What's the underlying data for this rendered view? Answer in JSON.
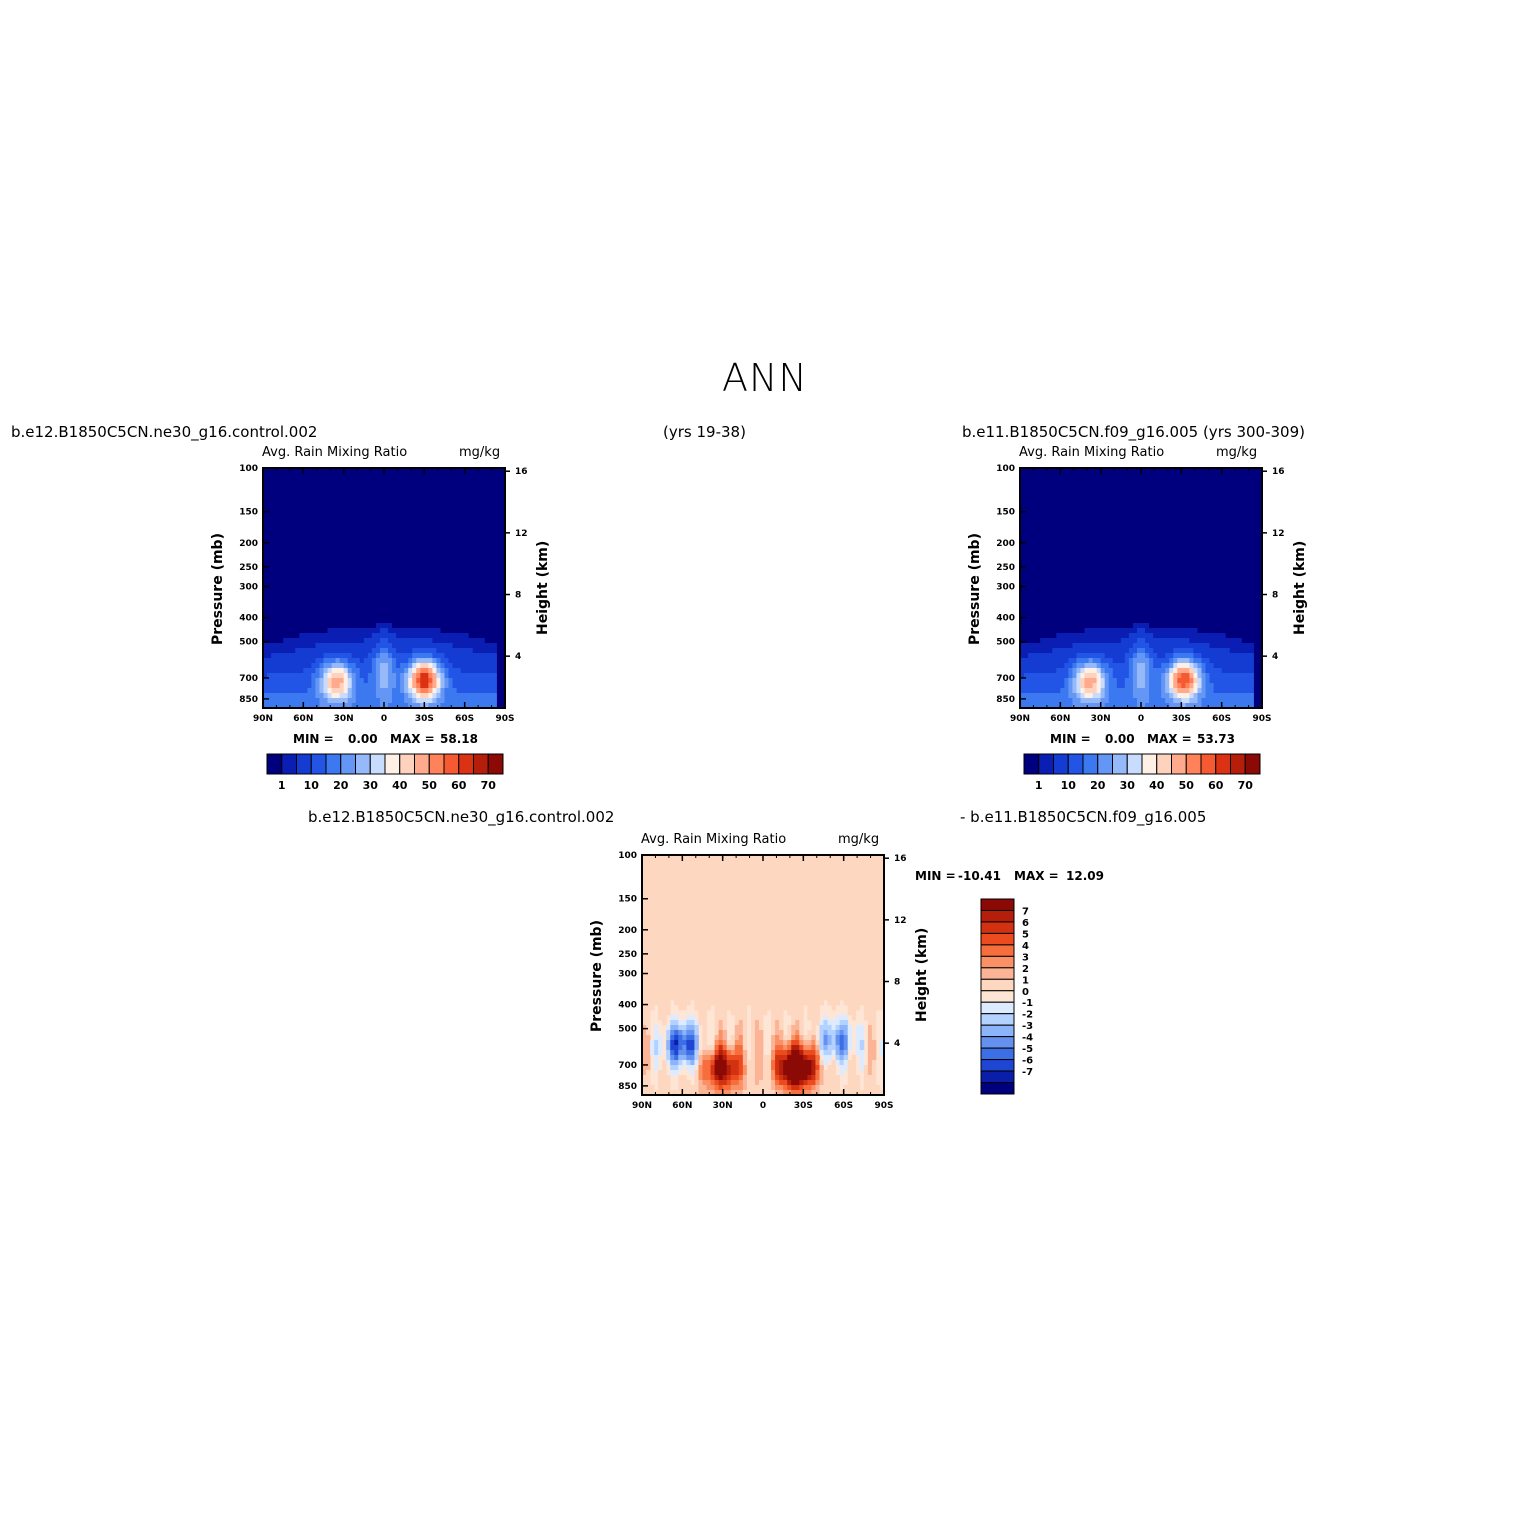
{
  "page": {
    "season": "ANN",
    "header_left": "b.e12.B1850C5CN.ne30_g16.control.002",
    "header_mid": "(yrs 19-38)",
    "header_right": "b.e11.B1850C5CN.f09_g16.005 (yrs 300-309)",
    "diff_label_left": "b.e12.B1850C5CN.ne30_g16.control.002",
    "diff_label_right": "- b.e11.B1850C5CN.f09_g16.005"
  },
  "colors": {
    "deep_blue": "#000a8c",
    "diff_background": "#fee6d6"
  },
  "chart_data": [
    {
      "type": "heatmap",
      "id": "panel-a",
      "variable": "Avg. Rain Mixing Ratio",
      "units": "mg/kg",
      "ylabel": "Pressure (mb)",
      "ylabel_right": "Height (km)",
      "x_ticks": [
        "90N",
        "60N",
        "30N",
        "0",
        "30S",
        "60S",
        "90S"
      ],
      "y_ticks": [
        "100",
        "150",
        "200",
        "250",
        "300",
        "400",
        "500",
        "700",
        "850"
      ],
      "y_ticks_right": [
        "16",
        "12",
        "8",
        "4"
      ],
      "min_label": "MIN =",
      "min": "0.00",
      "max_label": "MAX =",
      "max": "58.18",
      "colorbar_labels": [
        "1",
        "10",
        "20",
        "30",
        "40",
        "50",
        "60",
        "70"
      ],
      "colorbar_colors": [
        "#00007f",
        "#0a1eb4",
        "#143cd2",
        "#2255e6",
        "#3c78f0",
        "#6496f5",
        "#96b9fa",
        "#c8dcff",
        "#fff0e6",
        "#ffd2be",
        "#ffaa8c",
        "#ff825a",
        "#f55a32",
        "#dc3214",
        "#b41e0a",
        "#8c0a05"
      ],
      "peaks": [
        {
          "lat": 35,
          "p": 720,
          "value": 40
        },
        {
          "lat": -30,
          "p": 710,
          "value": 58
        }
      ]
    },
    {
      "type": "heatmap",
      "id": "panel-b",
      "variable": "Avg. Rain Mixing Ratio",
      "units": "mg/kg",
      "ylabel": "Pressure (mb)",
      "ylabel_right": "Height (km)",
      "x_ticks": [
        "90N",
        "60N",
        "30N",
        "0",
        "30S",
        "60S",
        "90S"
      ],
      "y_ticks": [
        "100",
        "150",
        "200",
        "250",
        "300",
        "400",
        "500",
        "700",
        "850"
      ],
      "y_ticks_right": [
        "16",
        "12",
        "8",
        "4"
      ],
      "min_label": "MIN =",
      "min": "0.00",
      "max_label": "MAX =",
      "max": "53.73",
      "colorbar_labels": [
        "1",
        "10",
        "20",
        "30",
        "40",
        "50",
        "60",
        "70"
      ],
      "colorbar_colors": [
        "#00007f",
        "#0a1eb4",
        "#143cd2",
        "#2255e6",
        "#3c78f0",
        "#6496f5",
        "#96b9fa",
        "#c8dcff",
        "#fff0e6",
        "#ffd2be",
        "#ffaa8c",
        "#ff825a",
        "#f55a32",
        "#dc3214",
        "#b41e0a",
        "#8c0a05"
      ],
      "peaks": [
        {
          "lat": 38,
          "p": 720,
          "value": 40
        },
        {
          "lat": -32,
          "p": 710,
          "value": 53
        }
      ]
    },
    {
      "type": "heatmap",
      "id": "panel-diff",
      "variable": "Avg. Rain Mixing Ratio",
      "units": "mg/kg",
      "ylabel": "Pressure (mb)",
      "ylabel_right": "Height (km)",
      "x_ticks": [
        "90N",
        "60N",
        "30N",
        "0",
        "30S",
        "60S",
        "90S"
      ],
      "y_ticks": [
        "100",
        "150",
        "200",
        "250",
        "300",
        "400",
        "500",
        "700",
        "850"
      ],
      "y_ticks_right": [
        "16",
        "12",
        "8",
        "4"
      ],
      "min_label": "MIN =",
      "min": "-10.41",
      "max_label": "MAX =",
      "max": "12.09",
      "colorbar_labels": [
        "7",
        "6",
        "5",
        "4",
        "3",
        "2",
        "1",
        "0",
        "-1",
        "-2",
        "-3",
        "-4",
        "-5",
        "-6",
        "-7"
      ],
      "colorbar_colors": [
        "#8c0a05",
        "#b41e0a",
        "#d2320f",
        "#eb4b1e",
        "#f56e3c",
        "#fa9164",
        "#fcb496",
        "#fdd7c0",
        "#fee6d6",
        "#dcebff",
        "#b4d2ff",
        "#8cb4fa",
        "#6491f0",
        "#3c6ee6",
        "#1e46d2",
        "#0a1eaa",
        "#00007f"
      ],
      "peaks": [
        {
          "lat": 30,
          "p": 720,
          "value": 8
        },
        {
          "lat": -25,
          "p": 715,
          "value": 12
        },
        {
          "lat": 60,
          "p": 580,
          "value": -7
        },
        {
          "lat": -55,
          "p": 560,
          "value": -5
        }
      ]
    }
  ]
}
